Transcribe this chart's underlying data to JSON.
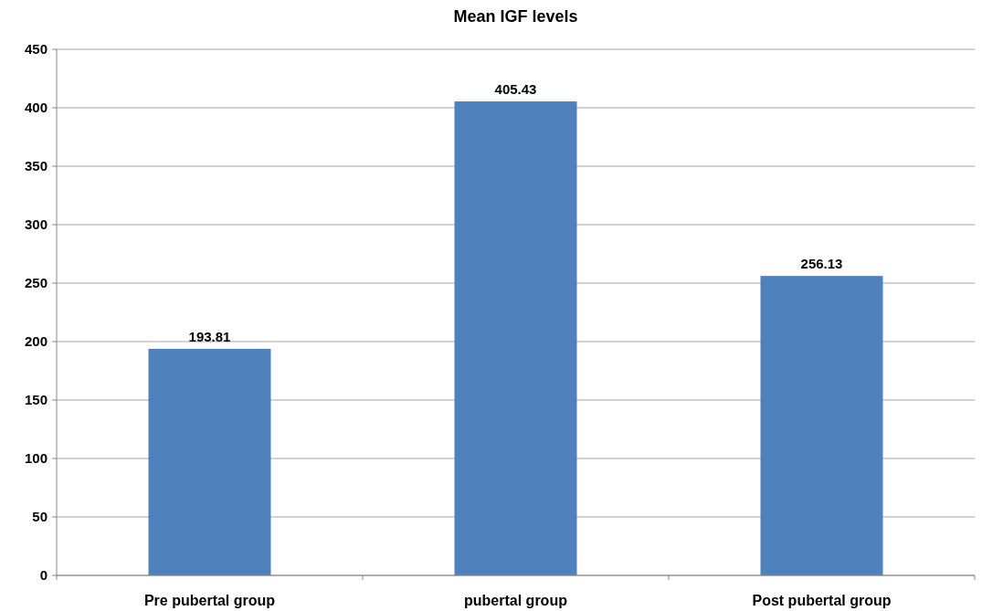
{
  "chart_data": {
    "type": "bar",
    "title": "Mean IGF levels",
    "categories": [
      "Pre pubertal group",
      "pubertal group",
      "Post pubertal group"
    ],
    "values": [
      193.81,
      405.43,
      256.13
    ],
    "color": "#4f81bd",
    "ylim": [
      0,
      450
    ],
    "yticks": [
      0,
      50,
      100,
      150,
      200,
      250,
      300,
      350,
      400,
      450
    ],
    "grid": "y",
    "data_labels": true
  }
}
